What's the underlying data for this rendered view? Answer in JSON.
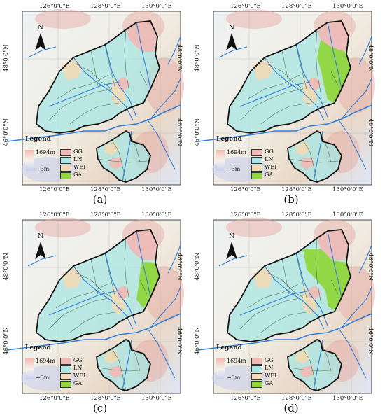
{
  "colors": {
    "GG": "#f2b8b5",
    "LN": "#a8e6e3",
    "WEI": "#f2d9b5",
    "GA": "#8fd63a",
    "river": "#2f7fd8",
    "boundary": "#111111",
    "dem_high": "#e7a6a0",
    "dem_low": "#c9d1ee"
  },
  "coords": {
    "top": [
      "126°0'0\"E",
      "128°0'0\"E",
      "130°0'0\"E"
    ],
    "bottom": [
      "126°0'0\"E",
      "128°0'0\"E",
      "130°0'0\"E"
    ],
    "left": [
      "48°0'0\"N",
      "46°0'0\"N"
    ],
    "right": [
      "48°0'0\"N",
      "46°0'0\"N"
    ]
  },
  "north_label": "N",
  "legend": {
    "title": "Legend",
    "dem_high": "1694m",
    "dem_low": "−3m",
    "items": [
      {
        "key": "GG",
        "label": "GG"
      },
      {
        "key": "LN",
        "label": "LN"
      },
      {
        "key": "WEI",
        "label": "WEI"
      },
      {
        "key": "GA",
        "label": "GA"
      }
    ]
  },
  "panels": [
    {
      "caption": "(a)",
      "ga_level": 0
    },
    {
      "caption": "(b)",
      "ga_level": 2
    },
    {
      "caption": "(c)",
      "ga_level": 1
    },
    {
      "caption": "(d)",
      "ga_level": 3
    }
  ]
}
